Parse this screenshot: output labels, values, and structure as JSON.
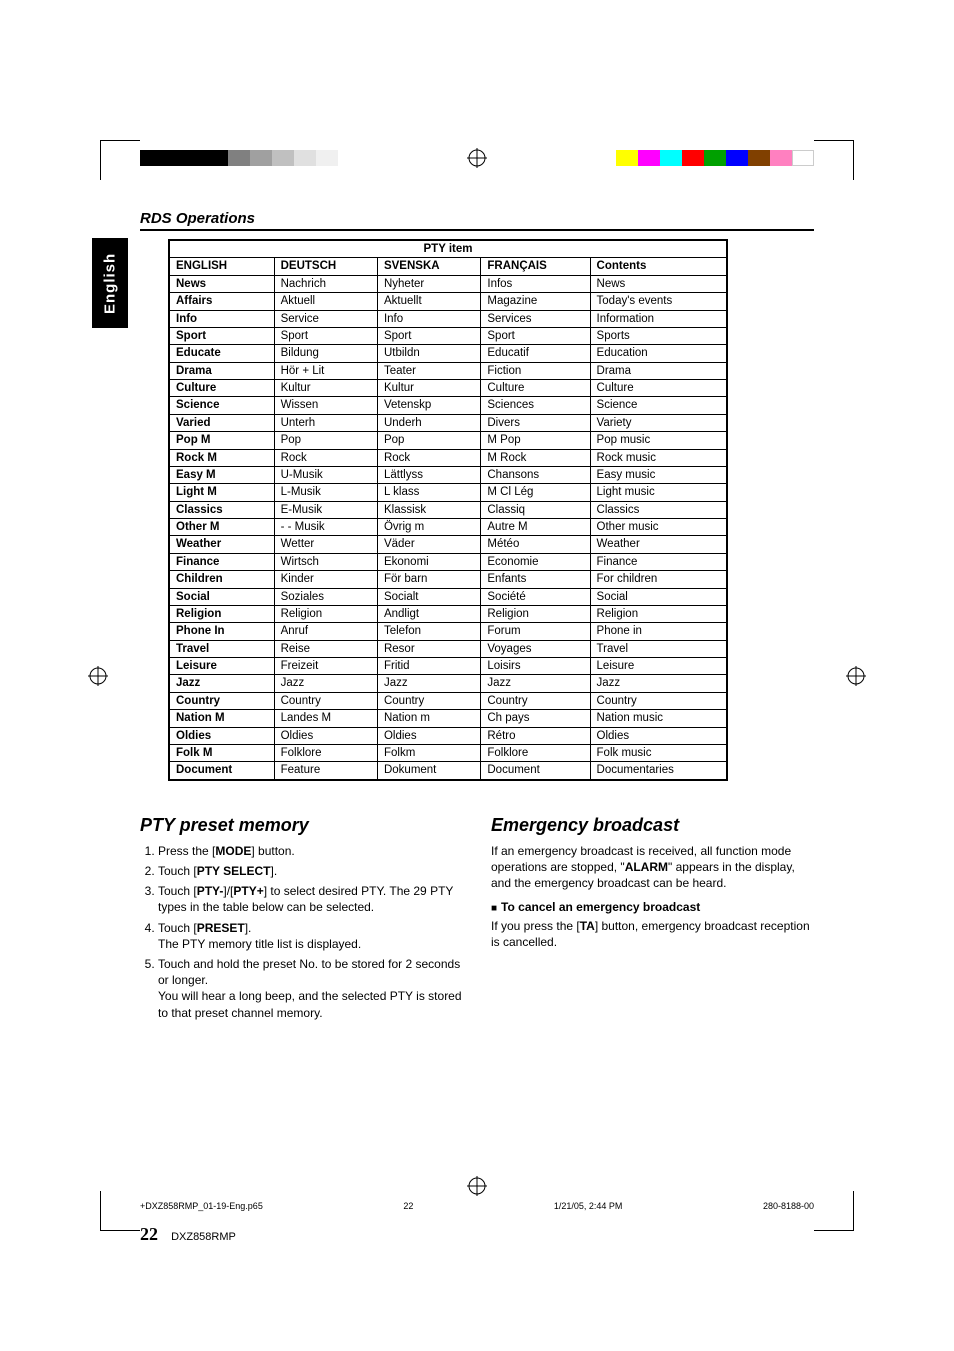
{
  "side_tab": "English",
  "section_heading": "RDS Operations",
  "pty_table": {
    "title": "PTY item",
    "headers": [
      "ENGLISH",
      "DEUTSCH",
      "SVENSKA",
      "FRANÇAIS",
      "Contents"
    ],
    "rows": [
      [
        "News",
        "Nachrich",
        "Nyheter",
        "Infos",
        "News"
      ],
      [
        "Affairs",
        "Aktuell",
        "Aktuellt",
        "Magazine",
        "Today's events"
      ],
      [
        "Info",
        "Service",
        "Info",
        "Services",
        "Information"
      ],
      [
        "Sport",
        "Sport",
        "Sport",
        "Sport",
        "Sports"
      ],
      [
        "Educate",
        "Bildung",
        "Utbildn",
        "Educatif",
        "Education"
      ],
      [
        "Drama",
        "Hör + Lit",
        "Teater",
        "Fiction",
        "Drama"
      ],
      [
        "Culture",
        "Kultur",
        "Kultur",
        "Culture",
        "Culture"
      ],
      [
        "Science",
        "Wissen",
        "Vetenskp",
        "Sciences",
        "Science"
      ],
      [
        "Varied",
        "Unterh",
        "Underh",
        "Divers",
        "Variety"
      ],
      [
        "Pop M",
        "Pop",
        "Pop",
        "M Pop",
        "Pop music"
      ],
      [
        "Rock M",
        "Rock",
        "Rock",
        "M Rock",
        "Rock music"
      ],
      [
        "Easy M",
        "U-Musik",
        "Lättlyss",
        "Chansons",
        "Easy music"
      ],
      [
        "Light M",
        "L-Musik",
        "L klass",
        "M Cl Lég",
        "Light music"
      ],
      [
        "Classics",
        "E-Musik",
        "Klassisk",
        "Classiq",
        "Classics"
      ],
      [
        "Other M",
        "- - Musik",
        "Övrig m",
        "Autre M",
        "Other music"
      ],
      [
        "Weather",
        "Wetter",
        "Väder",
        "Météo",
        "Weather"
      ],
      [
        "Finance",
        "Wirtsch",
        "Ekonomi",
        "Economie",
        "Finance"
      ],
      [
        "Children",
        "Kinder",
        "För barn",
        "Enfants",
        "For children"
      ],
      [
        "Social",
        "Soziales",
        "Socialt",
        "Société",
        "Social"
      ],
      [
        "Religion",
        "Religion",
        "Andligt",
        "Religion",
        "Religion"
      ],
      [
        "Phone In",
        "Anruf",
        "Telefon",
        "Forum",
        "Phone in"
      ],
      [
        "Travel",
        "Reise",
        "Resor",
        "Voyages",
        "Travel"
      ],
      [
        "Leisure",
        "Freizeit",
        "Fritid",
        "Loisirs",
        "Leisure"
      ],
      [
        "Jazz",
        "Jazz",
        "Jazz",
        "Jazz",
        "Jazz"
      ],
      [
        "Country",
        "Country",
        "Country",
        "Country",
        "Country"
      ],
      [
        "Nation M",
        "Landes M",
        "Nation m",
        "Ch pays",
        "Nation music"
      ],
      [
        "Oldies",
        "Oldies",
        "Oldies",
        "Rétro",
        "Oldies"
      ],
      [
        "Folk M",
        "Folklore",
        "Folkm",
        "Folklore",
        "Folk music"
      ],
      [
        "Document",
        "Feature",
        "Dokument",
        "Document",
        "Documentaries"
      ]
    ]
  },
  "left_col": {
    "heading": "PTY preset memory",
    "steps": [
      "Press the [<b>MODE</b>] button.",
      "Touch [<b>PTY SELECT</b>].",
      "Touch [<b>PTY-</b>]/[<b>PTY+</b>] to select desired PTY. The 29 PTY types in the table below can be selected.",
      "Touch [<b>PRESET</b>].<br>The PTY memory title list is displayed.",
      "Touch and hold the preset No. to be stored for 2 seconds or longer.<br>You will hear a long beep, and the selected PTY is stored to that preset channel memory."
    ]
  },
  "right_col": {
    "heading": "Emergency broadcast",
    "body": "If an emergency broadcast is received, all function mode operations are stopped, \"<b>ALARM</b>\" appears in the display, and the emergency broadcast can be heard.",
    "sub_heading": "To cancel an emergency broadcast",
    "sub_body": "If you press the [<b>TA</b>] button, emergency broadcast reception is cancelled."
  },
  "page_number": "22",
  "model": "DXZ858RMP",
  "footer": {
    "file": "+DXZ858RMP_01-19-Eng.p65",
    "page": "22",
    "date": "1/21/05, 2:44 PM",
    "code": "280-8188-00"
  },
  "colorbars": {
    "left": [
      "#000000",
      "#000000",
      "#000000",
      "#000000",
      "#808080",
      "#a0a0a0",
      "#c0c0c0",
      "#e0e0e0",
      "#f0f0f0"
    ],
    "right": [
      "#ffff00",
      "#ff00ff",
      "#00ffff",
      "#ff0000",
      "#00a000",
      "#0000ff",
      "#804000",
      "#ff80c0",
      "#ffffff"
    ]
  }
}
